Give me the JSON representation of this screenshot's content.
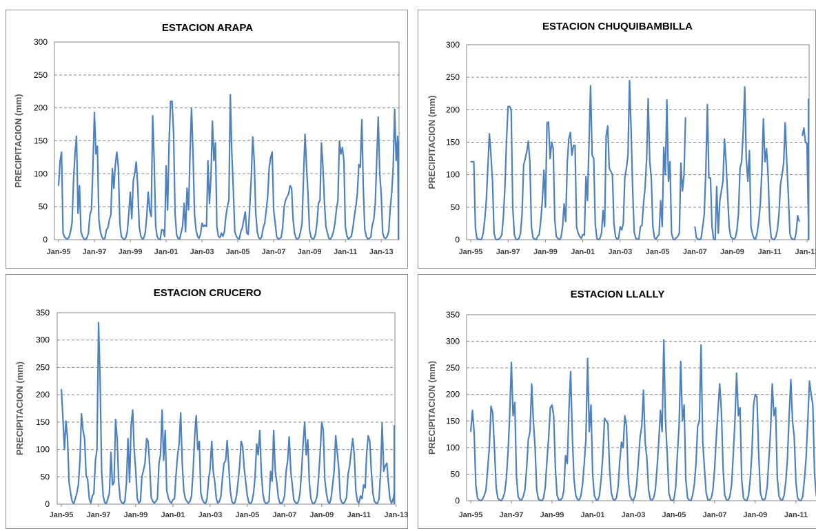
{
  "chart_data": [
    {
      "type": "line",
      "title": "ESTACION ARAPA",
      "ylabel": "PRECIPITACION (mm)",
      "xlabel": "",
      "ylim": [
        0,
        300
      ],
      "yticks": [
        0,
        50,
        100,
        150,
        200,
        250,
        300
      ],
      "xtick_labels": [
        "Jan-95",
        "Jan-97",
        "Jan-99",
        "Jan-01",
        "Jan-03",
        "Jan-05",
        "Jan-07",
        "Jan-09",
        "Jan-11",
        "Jan-13"
      ],
      "x_start": "Jan-95",
      "grid": true,
      "color": "#4f81bd",
      "series": [
        {
          "values": [
            82,
            120,
            133,
            10,
            4,
            2,
            1,
            4,
            12,
            25,
            90,
            130,
            157,
            40,
            82,
            12,
            5,
            1,
            0,
            3,
            10,
            38,
            45,
            110,
            193,
            130,
            142,
            30,
            12,
            4,
            1,
            2,
            15,
            18,
            30,
            38,
            108,
            78,
            115,
            133,
            110,
            25,
            5,
            2,
            0,
            3,
            12,
            40,
            72,
            32,
            90,
            100,
            118,
            80,
            20,
            6,
            1,
            2,
            10,
            35,
            72,
            45,
            35,
            188,
            120,
            20,
            5,
            1,
            0,
            15,
            15,
            5,
            112,
            45,
            150,
            210,
            210,
            160,
            40,
            8,
            2,
            1,
            10,
            20,
            55,
            12,
            78,
            45,
            130,
            200,
            130,
            40,
            15,
            5,
            2,
            8,
            25,
            20,
            22,
            20,
            120,
            55,
            95,
            180,
            120,
            147,
            20,
            5,
            3,
            10,
            5,
            12,
            35,
            50,
            60,
            220,
            130,
            75,
            12,
            5,
            2,
            1,
            12,
            18,
            30,
            42,
            10,
            8,
            50,
            95,
            156,
            120,
            40,
            12,
            3,
            1,
            5,
            18,
            25,
            45,
            65,
            110,
            125,
            133,
            45,
            25,
            5,
            1,
            2,
            3,
            18,
            50,
            60,
            65,
            70,
            82,
            78,
            30,
            10,
            2,
            1,
            3,
            12,
            25,
            95,
            160,
            110,
            70,
            15,
            4,
            1,
            2,
            8,
            25,
            55,
            60,
            147,
            110,
            55,
            20,
            10,
            2,
            1,
            5,
            12,
            25,
            45,
            60,
            150,
            130,
            140,
            120,
            20,
            6,
            1,
            3,
            5,
            18,
            35,
            50,
            70,
            114,
            110,
            182,
            80,
            15,
            5,
            1,
            2,
            4,
            22,
            30,
            55,
            120,
            186,
            100,
            70,
            10,
            3,
            2,
            5,
            12,
            45,
            70,
            110,
            198,
            120,
            157,
            40,
            6,
            2,
            1,
            3,
            10,
            28,
            55,
            70,
            150,
            150,
            138,
            30,
            5,
            1,
            2,
            8,
            15,
            30,
            45,
            65,
            145,
            135,
            105,
            80,
            40,
            15,
            5,
            2,
            8,
            25,
            40,
            73,
            48,
            62
          ]
        }
      ]
    },
    {
      "type": "line",
      "title": "ESTACION CHUQUIBAMBILLA",
      "ylabel": "PRECIPITACION (mm)",
      "xlabel": "",
      "ylim": [
        0,
        300
      ],
      "yticks": [
        0,
        50,
        100,
        150,
        200,
        250,
        300
      ],
      "xtick_labels": [
        "Jan-95",
        "Jan-97",
        "Jan-99",
        "Jan-01",
        "Jan-03",
        "Jan-05",
        "Jan-07",
        "Jan-09",
        "Jan-11",
        "Jan-13"
      ],
      "x_start": "Jan-95",
      "grid": true,
      "color": "#4f81bd",
      "series": [
        {
          "values": [
            120,
            120,
            120,
            18,
            2,
            1,
            0,
            1,
            10,
            30,
            60,
            110,
            163,
            130,
            90,
            10,
            1,
            0,
            1,
            3,
            8,
            35,
            82,
            155,
            205,
            205,
            200,
            50,
            8,
            1,
            0,
            2,
            10,
            40,
            115,
            125,
            135,
            152,
            120,
            20,
            3,
            1,
            0,
            5,
            8,
            30,
            60,
            107,
            50,
            180,
            181,
            125,
            150,
            140,
            30,
            5,
            2,
            0,
            3,
            20,
            55,
            28,
            118,
            155,
            165,
            130,
            145,
            145,
            20,
            10,
            5,
            2,
            8,
            7,
            97,
            60,
            150,
            237,
            130,
            125,
            25,
            2,
            0,
            2,
            10,
            45,
            20,
            160,
            175,
            110,
            105,
            100,
            25,
            5,
            1,
            2,
            20,
            15,
            25,
            95,
            110,
            130,
            245,
            170,
            80,
            12,
            2,
            1,
            1,
            20,
            22,
            55,
            80,
            126,
            217,
            120,
            95,
            20,
            3,
            1,
            5,
            8,
            60,
            20,
            142,
            100,
            215,
            90,
            120,
            10,
            1,
            0,
            3,
            5,
            10,
            118,
            75,
            100,
            188,
            null,
            null,
            null,
            null,
            null,
            20,
            3,
            1,
            0,
            2,
            20,
            38,
            105,
            208,
            95,
            95,
            20,
            1,
            0,
            82,
            10,
            60,
            75,
            90,
            155,
            120,
            70,
            20,
            5,
            2,
            1,
            3,
            15,
            40,
            110,
            120,
            165,
            235,
            125,
            90,
            137,
            20,
            8,
            2,
            1,
            10,
            28,
            55,
            105,
            186,
            120,
            140,
            100,
            30,
            3,
            1,
            0,
            5,
            15,
            40,
            85,
            100,
            118,
            180,
            120,
            70,
            10,
            2,
            1,
            0,
            10,
            37,
            28,
            null,
            160,
            172,
            150,
            148,
            30,
            5,
            1,
            2,
            10,
            30,
            50,
            90,
            176,
            210,
            155,
            100,
            20,
            3,
            1,
            2,
            15,
            10,
            55,
            40,
            176,
            216,
            150,
            170,
            90,
            25,
            3,
            1,
            0,
            15,
            30,
            40,
            103,
            78
          ]
        }
      ]
    },
    {
      "type": "line",
      "title": "ESTACION CRUCERO",
      "ylabel": "PRECIPITACION (mm)",
      "xlabel": "",
      "ylim": [
        0,
        350
      ],
      "yticks": [
        0,
        50,
        100,
        150,
        200,
        250,
        300,
        350
      ],
      "xtick_labels": [
        "Jan-95",
        "Jan-97",
        "Jan-99",
        "Jan-01",
        "Jan-03",
        "Jan-05",
        "Jan-07",
        "Jan-09",
        "Jan-11",
        "Jan-13"
      ],
      "x_start": "Jan-95",
      "grid": true,
      "color": "#4f81bd",
      "series": [
        {
          "values": [
            210,
            160,
            100,
            152,
            120,
            40,
            20,
            5,
            1,
            10,
            20,
            35,
            80,
            165,
            135,
            120,
            52,
            45,
            10,
            2,
            15,
            20,
            80,
            100,
            332,
            230,
            60,
            15,
            3,
            1,
            10,
            20,
            95,
            35,
            40,
            155,
            120,
            40,
            8,
            3,
            1,
            5,
            40,
            120,
            40,
            143,
            172,
            100,
            60,
            10,
            2,
            5,
            50,
            62,
            75,
            120,
            115,
            70,
            12,
            5,
            2,
            5,
            10,
            75,
            90,
            172,
            80,
            135,
            25,
            12,
            5,
            2,
            8,
            10,
            53,
            90,
            110,
            167,
            75,
            25,
            10,
            5,
            2,
            5,
            15,
            60,
            122,
            162,
            100,
            115,
            20,
            8,
            3,
            1,
            10,
            45,
            65,
            115,
            60,
            40,
            10,
            2,
            5,
            15,
            50,
            75,
            80,
            116,
            70,
            25,
            5,
            1,
            3,
            15,
            40,
            68,
            115,
            105,
            65,
            40,
            15,
            3,
            1,
            5,
            20,
            50,
            110,
            90,
            135,
            60,
            20,
            5,
            1,
            2,
            5,
            60,
            42,
            135,
            60,
            40,
            12,
            2,
            1,
            5,
            15,
            60,
            80,
            123,
            60,
            35,
            8,
            3,
            1,
            5,
            20,
            60,
            110,
            150,
            90,
            118,
            40,
            10,
            2,
            1,
            5,
            15,
            50,
            95,
            150,
            135,
            45,
            20,
            5,
            1,
            10,
            35,
            60,
            125,
            95,
            65,
            10,
            3,
            1,
            5,
            12,
            55,
            70,
            97,
            120,
            90,
            25,
            5,
            2,
            15,
            10,
            35,
            30,
            95,
            125,
            115,
            60,
            20,
            5,
            2,
            2,
            10,
            60,
            148,
            60,
            70,
            75,
            40,
            10,
            2,
            8,
            20,
            45,
            120,
            135,
            143,
            60,
            30,
            10,
            2,
            5,
            15,
            45,
            75,
            105,
            70,
            25,
            10,
            3,
            1,
            3,
            20,
            50,
            80,
            104,
            100,
            68,
            30,
            10,
            2,
            8,
            20,
            38,
            38,
            22
          ]
        }
      ]
    },
    {
      "type": "line",
      "title": "ESTACION LLALLY",
      "ylabel": "PRECIPITACION (mm)",
      "xlabel": "",
      "ylim": [
        0,
        350
      ],
      "yticks": [
        0,
        50,
        100,
        150,
        200,
        250,
        300,
        350
      ],
      "xtick_labels": [
        "Jan-95",
        "Jan-97",
        "Jan-99",
        "Jan-01",
        "Jan-03",
        "Jan-05",
        "Jan-07",
        "Jan-09",
        "Jan-11",
        "Jan-13"
      ],
      "x_start": "Jan-95",
      "grid": true,
      "color": "#4f81bd",
      "series": [
        {
          "values": [
            130,
            170,
            130,
            30,
            5,
            1,
            0,
            3,
            10,
            20,
            60,
            100,
            178,
            165,
            100,
            25,
            5,
            1,
            0,
            5,
            15,
            40,
            90,
            160,
            260,
            160,
            185,
            45,
            8,
            2,
            1,
            8,
            20,
            60,
            115,
            130,
            220,
            150,
            100,
            20,
            3,
            1,
            0,
            5,
            25,
            75,
            120,
            175,
            180,
            160,
            60,
            10,
            2,
            1,
            5,
            20,
            85,
            70,
            170,
            243,
            120,
            40,
            10,
            3,
            1,
            8,
            30,
            70,
            115,
            268,
            130,
            180,
            50,
            10,
            2,
            1,
            10,
            40,
            85,
            155,
            150,
            145,
            60,
            15,
            3,
            1,
            5,
            25,
            75,
            110,
            100,
            160,
            140,
            40,
            10,
            2,
            1,
            8,
            30,
            75,
            120,
            140,
            208,
            110,
            80,
            20,
            3,
            1,
            5,
            20,
            60,
            110,
            170,
            130,
            303,
            150,
            90,
            15,
            2,
            0,
            3,
            25,
            85,
            140,
            262,
            150,
            180,
            40,
            5,
            1,
            0,
            10,
            30,
            70,
            140,
            150,
            293,
            110,
            60,
            15,
            2,
            1,
            5,
            20,
            60,
            120,
            170,
            220,
            170,
            60,
            10,
            2,
            1,
            8,
            30,
            85,
            150,
            240,
            160,
            175,
            40,
            5,
            1,
            0,
            10,
            40,
            90,
            180,
            200,
            195,
            90,
            15,
            3,
            1,
            5,
            25,
            75,
            130,
            220,
            160,
            175,
            45,
            8,
            2,
            1,
            10,
            35,
            80,
            160,
            228,
            150,
            120,
            35,
            5,
            1,
            0,
            8,
            40,
            80,
            150,
            225,
            200,
            180,
            50,
            10,
            3,
            1,
            5,
            20,
            70,
            130,
            225,
            228,
            160,
            90,
            20,
            5,
            1,
            0,
            10,
            35,
            80,
            135,
            170,
            140,
            90,
            35,
            10,
            3,
            0,
            5,
            30,
            75,
            135,
            50,
            120
          ]
        }
      ]
    }
  ]
}
